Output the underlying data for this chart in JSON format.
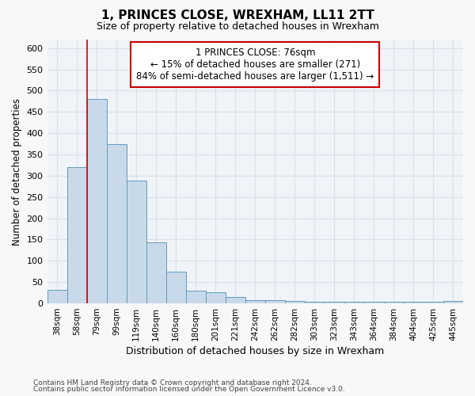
{
  "title_line1": "1, PRINCES CLOSE, WREXHAM, LL11 2TT",
  "title_line2": "Size of property relative to detached houses in Wrexham",
  "xlabel": "Distribution of detached houses by size in Wrexham",
  "ylabel": "Number of detached properties",
  "categories": [
    "38sqm",
    "58sqm",
    "79sqm",
    "99sqm",
    "119sqm",
    "140sqm",
    "160sqm",
    "180sqm",
    "201sqm",
    "221sqm",
    "242sqm",
    "262sqm",
    "282sqm",
    "303sqm",
    "323sqm",
    "343sqm",
    "364sqm",
    "384sqm",
    "404sqm",
    "425sqm",
    "445sqm"
  ],
  "values": [
    31,
    320,
    481,
    375,
    288,
    143,
    75,
    30,
    27,
    15,
    8,
    8,
    5,
    4,
    4,
    4,
    4,
    4,
    4,
    4,
    5
  ],
  "bar_color": "#c8daea",
  "bar_edge_color": "#6699bb",
  "vline_bin_index": 2,
  "annotation_text": "1 PRINCES CLOSE: 76sqm\n← 15% of detached houses are smaller (271)\n84% of semi-detached houses are larger (1,511) →",
  "annotation_box_facecolor": "#ffffff",
  "annotation_box_edgecolor": "#cc0000",
  "ylim": [
    0,
    620
  ],
  "yticks": [
    0,
    50,
    100,
    150,
    200,
    250,
    300,
    350,
    400,
    450,
    500,
    550,
    600
  ],
  "footer_line1": "Contains HM Land Registry data © Crown copyright and database right 2024.",
  "footer_line2": "Contains public sector information licensed under the Open Government Licence v3.0.",
  "bg_color": "#f8f8f8",
  "plot_bg_color": "#f0f4f8",
  "grid_color": "#d8e0ea",
  "vline_color": "#cc0000",
  "title1_fontsize": 11,
  "title2_fontsize": 9
}
